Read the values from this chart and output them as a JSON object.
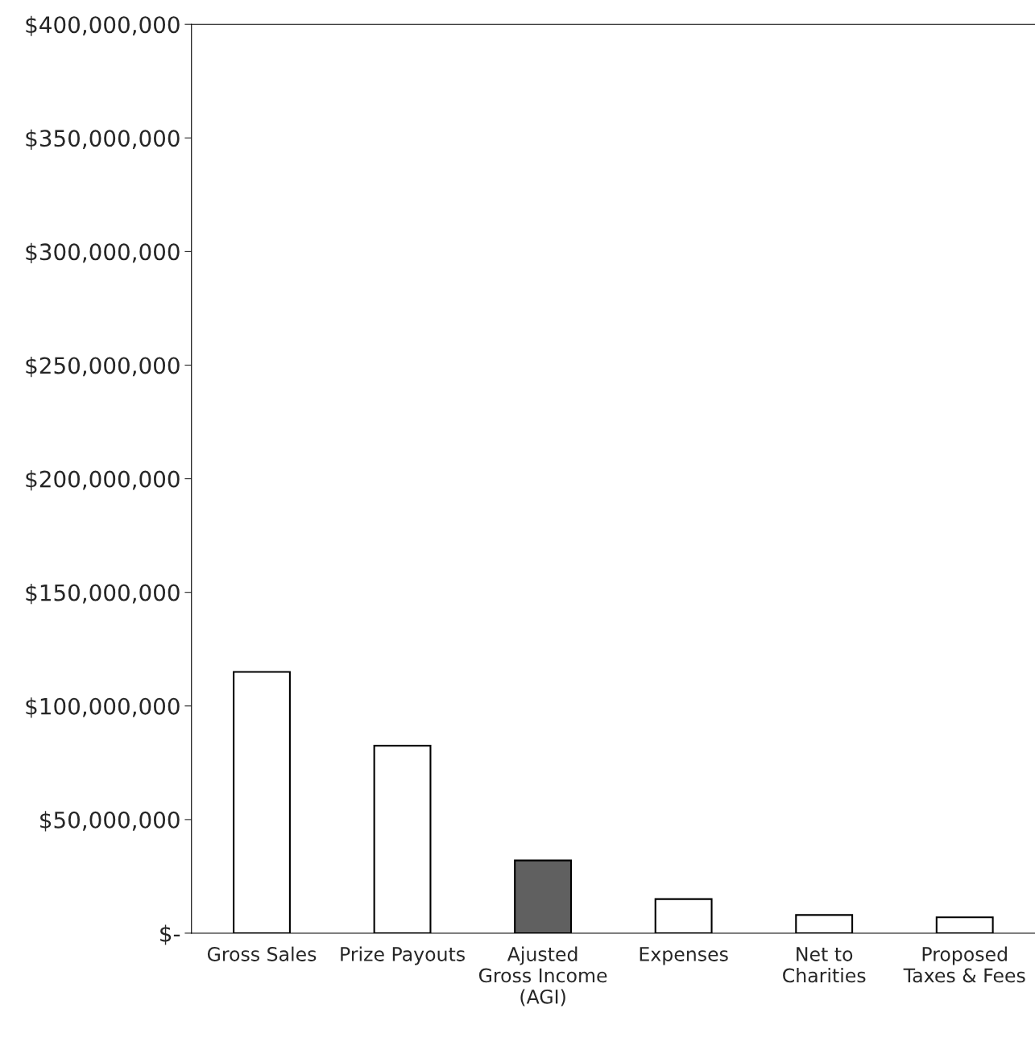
{
  "chart_data": {
    "type": "bar",
    "categories": [
      "Gross Sales",
      "Prize Payouts",
      "Ajusted\nGross Income\n(AGI)",
      "Expenses",
      "Net to\nCharities",
      "Proposed\nTaxes & Fees"
    ],
    "values": [
      115000000,
      82500000,
      32000000,
      15000000,
      8000000,
      7000000
    ],
    "colors": [
      "#ffffff",
      "#ffffff",
      "#606060",
      "#ffffff",
      "#ffffff",
      "#ffffff"
    ],
    "ylim": [
      0,
      400000000
    ],
    "yticks": [
      {
        "value": 0,
        "label": "$-"
      },
      {
        "value": 50000000,
        "label": "$50,000,000"
      },
      {
        "value": 100000000,
        "label": "$100,000,000"
      },
      {
        "value": 150000000,
        "label": "$150,000,000"
      },
      {
        "value": 200000000,
        "label": "$200,000,000"
      },
      {
        "value": 250000000,
        "label": "$250,000,000"
      },
      {
        "value": 300000000,
        "label": "$300,000,000"
      },
      {
        "value": 350000000,
        "label": "$350,000,000"
      },
      {
        "value": 400000000,
        "label": "$400,000,000"
      }
    ],
    "grid": false
  }
}
